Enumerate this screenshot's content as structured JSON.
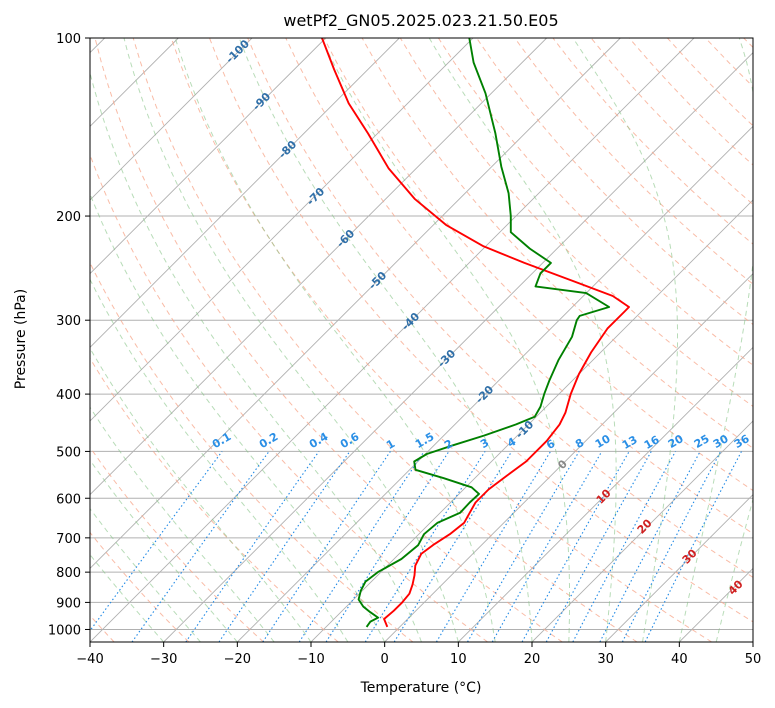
{
  "chart_data": {
    "type": "line",
    "title": "wetPf2_GN05.2025.023.21.50.E05",
    "xlabel": "Temperature (°C)",
    "ylabel": "Pressure (hPa)",
    "xlim": [
      -40,
      50
    ],
    "ylim": [
      1050,
      100
    ],
    "y_scale": "log",
    "x_ticks": [
      "−40",
      "−30",
      "−20",
      "−10",
      "0",
      "10",
      "20",
      "30",
      "40",
      "50"
    ],
    "y_ticks": [
      "100",
      "200",
      "300",
      "400",
      "500",
      "600",
      "700",
      "800",
      "900",
      "1000"
    ],
    "grid": true,
    "skew": "skew-T log-p",
    "series": [
      {
        "color": "#ff0000",
        "role": "temperature",
        "points": [
          [
            -1.7,
            990
          ],
          [
            -3.2,
            960
          ],
          [
            -3,
            930
          ],
          [
            -3,
            900
          ],
          [
            -3.2,
            870
          ],
          [
            -4,
            840
          ],
          [
            -5,
            810
          ],
          [
            -6.2,
            780
          ],
          [
            -7,
            745
          ],
          [
            -6.6,
            720
          ],
          [
            -5.8,
            690
          ],
          [
            -5.4,
            660
          ],
          [
            -6,
            635
          ],
          [
            -6.6,
            610
          ],
          [
            -6.6,
            580
          ],
          [
            -6,
            550
          ],
          [
            -5.3,
            520
          ],
          [
            -5.3,
            480
          ],
          [
            -5.8,
            450
          ],
          [
            -6.6,
            430
          ],
          [
            -8.4,
            400
          ],
          [
            -10,
            370
          ],
          [
            -11.3,
            340
          ],
          [
            -12.3,
            310
          ],
          [
            -12.3,
            290
          ],
          [
            -12.3,
            285
          ],
          [
            -16,
            273
          ],
          [
            -23.2,
            258
          ],
          [
            -32.5,
            240
          ],
          [
            -40.3,
            225
          ],
          [
            -48.3,
            207
          ],
          [
            -56.1,
            187
          ],
          [
            -63.8,
            166
          ],
          [
            -71.3,
            145
          ],
          [
            -78,
            129
          ],
          [
            -84.6,
            113
          ],
          [
            -90.5,
            100
          ]
        ]
      },
      {
        "color": "#008000",
        "role": "dewpoint",
        "points": [
          [
            -4.5,
            990
          ],
          [
            -4.7,
            970
          ],
          [
            -4.2,
            955
          ],
          [
            -6,
            935
          ],
          [
            -7.7,
            915
          ],
          [
            -9.3,
            890
          ],
          [
            -10.2,
            860
          ],
          [
            -10.8,
            830
          ],
          [
            -10.4,
            800
          ],
          [
            -9,
            760
          ],
          [
            -8.6,
            720
          ],
          [
            -9.3,
            690
          ],
          [
            -9,
            660
          ],
          [
            -7.3,
            635
          ],
          [
            -7.4,
            610
          ],
          [
            -7.3,
            590
          ],
          [
            -9.2,
            575
          ],
          [
            -14.2,
            555
          ],
          [
            -19.2,
            537
          ],
          [
            -20.5,
            520
          ],
          [
            -19.8,
            505
          ],
          [
            -17.4,
            488
          ],
          [
            -14.5,
            470
          ],
          [
            -11.7,
            450
          ],
          [
            -10.2,
            437
          ],
          [
            -10.8,
            420
          ],
          [
            -12,
            400
          ],
          [
            -13.1,
            380
          ],
          [
            -14.7,
            350
          ],
          [
            -16,
            320
          ],
          [
            -17.6,
            300
          ],
          [
            -17.8,
            295
          ],
          [
            -15,
            285
          ],
          [
            -20,
            270
          ],
          [
            -27.8,
            263
          ],
          [
            -28.9,
            250
          ],
          [
            -28.9,
            240
          ],
          [
            -33.7,
            227
          ],
          [
            -38.5,
            213
          ],
          [
            -40.7,
            200
          ],
          [
            -44.1,
            183
          ],
          [
            -48.7,
            165
          ],
          [
            -54,
            145
          ],
          [
            -60.8,
            124
          ],
          [
            -66.6,
            110
          ],
          [
            -70.5,
            100
          ]
        ]
      }
    ],
    "annotations": {
      "dry_adiabat_labels": [
        "-100",
        "-90",
        "-80",
        "-70",
        "-60",
        "-50",
        "-40",
        "-30",
        "-20",
        "-10",
        "0",
        "10",
        "20",
        "30",
        "40"
      ],
      "mixing_ratio_labels": [
        "0.1",
        "0.2",
        "0.4",
        "0.6",
        "1",
        "1.5",
        "2",
        "3",
        "4",
        "6",
        "8",
        "10",
        "13",
        "16",
        "20",
        "25",
        "30",
        "36"
      ]
    }
  }
}
